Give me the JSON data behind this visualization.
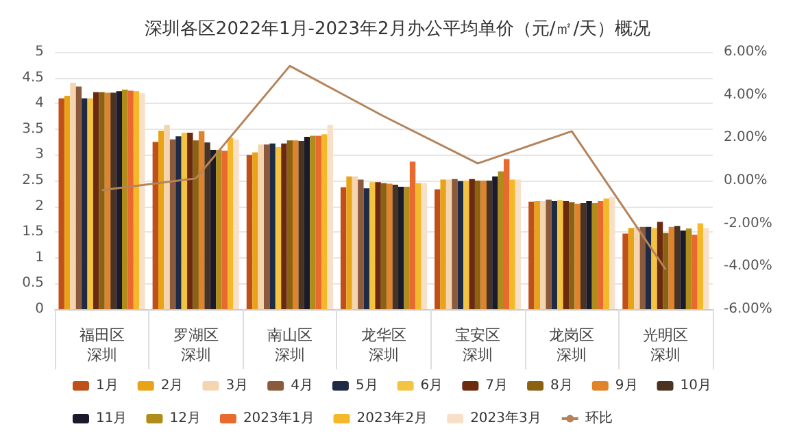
{
  "chart_data": {
    "type": "bar",
    "title": "深圳各区2022年1月-2023年2月办公平均单价（元/㎡/天）概况",
    "categories": [
      "福田区",
      "罗湖区",
      "南山区",
      "龙华区",
      "宝安区",
      "龙岗区",
      "光明区"
    ],
    "annotations": [
      "深圳",
      "深圳",
      "深圳",
      "深圳",
      "深圳",
      "深圳",
      "深圳"
    ],
    "series": [
      {
        "name": "1月",
        "color": "#c0501a",
        "values": [
          4.1,
          3.25,
          3.0,
          2.37,
          2.33,
          2.09,
          1.47
        ]
      },
      {
        "name": "2月",
        "color": "#e8a317",
        "values": [
          4.15,
          3.47,
          3.05,
          2.58,
          2.52,
          2.1,
          1.58
        ]
      },
      {
        "name": "3月",
        "color": "#f5d5b0",
        "values": [
          4.4,
          3.58,
          3.2,
          2.58,
          2.52,
          2.1,
          1.6
        ]
      },
      {
        "name": "4月",
        "color": "#8b5a3c",
        "values": [
          4.33,
          3.3,
          3.2,
          2.52,
          2.53,
          2.13,
          1.6
        ]
      },
      {
        "name": "5月",
        "color": "#1f2a44",
        "values": [
          4.1,
          3.36,
          3.22,
          2.35,
          2.49,
          2.1,
          1.6
        ]
      },
      {
        "name": "6月",
        "color": "#f5c342",
        "values": [
          4.1,
          3.43,
          3.15,
          2.47,
          2.5,
          2.12,
          1.58
        ]
      },
      {
        "name": "7月",
        "color": "#6b2a0e",
        "values": [
          4.22,
          3.43,
          3.22,
          2.47,
          2.53,
          2.1,
          1.7
        ]
      },
      {
        "name": "8月",
        "color": "#8a6212",
        "values": [
          4.22,
          3.28,
          3.28,
          2.45,
          2.5,
          2.08,
          1.48
        ]
      },
      {
        "name": "9月",
        "color": "#e0832a",
        "values": [
          4.21,
          3.46,
          3.28,
          2.44,
          2.5,
          2.05,
          1.6
        ]
      },
      {
        "name": "10月",
        "color": "#4a3320",
        "values": [
          4.21,
          3.24,
          3.27,
          2.42,
          2.5,
          2.06,
          1.62
        ]
      },
      {
        "name": "11月",
        "color": "#1a1a2a",
        "values": [
          4.24,
          3.1,
          3.35,
          2.38,
          2.58,
          2.1,
          1.53
        ]
      },
      {
        "name": "12月",
        "color": "#b08c1a",
        "values": [
          4.27,
          3.1,
          3.37,
          2.38,
          2.68,
          2.06,
          1.57
        ]
      },
      {
        "name": "2023年1月",
        "color": "#e86a2e",
        "values": [
          4.25,
          3.08,
          3.37,
          2.87,
          2.92,
          2.1,
          1.45
        ]
      },
      {
        "name": "2023年2月",
        "color": "#f5b82a",
        "values": [
          4.24,
          3.33,
          3.4,
          2.45,
          2.52,
          2.15,
          1.67
        ]
      },
      {
        "name": "2023年3月",
        "color": "#f8e0c8",
        "values": [
          4.2,
          3.3,
          3.58,
          2.45,
          2.52,
          2.18,
          1.58
        ]
      },
      {
        "name": "环比",
        "type": "line",
        "axis": "y2",
        "color": "#b5835a",
        "values": [
          -0.45,
          0.1,
          5.35,
          3.0,
          0.8,
          2.3,
          -4.15
        ]
      }
    ],
    "ylim": [
      0,
      5
    ],
    "yticks": [
      0,
      0.5,
      1,
      1.5,
      2,
      2.5,
      3,
      3.5,
      4,
      4.5,
      5
    ],
    "y2lim": [
      -6,
      6
    ],
    "y2ticks": [
      {
        "value": -6,
        "label": "-6.00%"
      },
      {
        "value": -4,
        "label": "-4.00%"
      },
      {
        "value": -2,
        "label": "-2.00%"
      },
      {
        "value": 0,
        "label": "0.00%"
      },
      {
        "value": 2,
        "label": "2.00%"
      },
      {
        "value": 4,
        "label": "4.00%"
      },
      {
        "value": 6,
        "label": "6.00%"
      }
    ],
    "grid": "y",
    "legend": "bottom",
    "marker": "none"
  }
}
